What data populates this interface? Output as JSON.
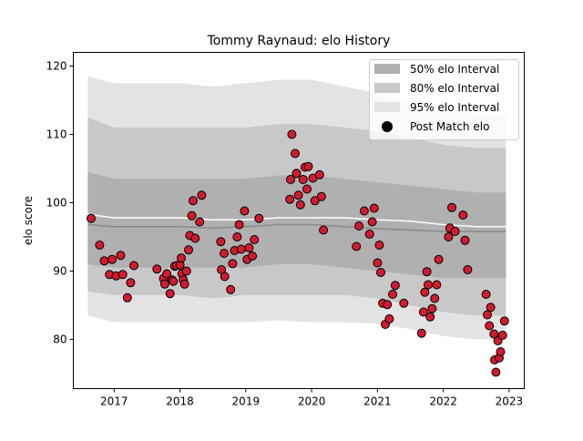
{
  "chart_data": {
    "type": "scatter",
    "title": "Tommy Raynaud: elo History",
    "xlabel": "",
    "ylabel": "elo score",
    "xlim": [
      2016.38,
      2023.23
    ],
    "ylim": [
      72.8,
      122.0
    ],
    "x_ticks": [
      2017,
      2018,
      2019,
      2020,
      2021,
      2022,
      2023
    ],
    "x_tick_labels": [
      "2017",
      "2018",
      "2019",
      "2020",
      "2021",
      "2022",
      "2023"
    ],
    "y_ticks": [
      80,
      90,
      100,
      110,
      120
    ],
    "y_tick_labels": [
      "80",
      "90",
      "100",
      "110",
      "120"
    ],
    "grid": false,
    "legend_position": "upper right",
    "colors": {
      "band50": "#b0b0b0",
      "band80": "#c8c8c8",
      "band95": "#e3e3e3",
      "mean_line": "#8a8a8a",
      "median_line": "#ffffff",
      "points": "#d01c2e",
      "point_edge": "#000000"
    },
    "legend": [
      {
        "label": "50% elo Interval",
        "kind": "band",
        "color": "#b0b0b0"
      },
      {
        "label": "80% elo Interval",
        "kind": "band",
        "color": "#c8c8c8"
      },
      {
        "label": "95% elo Interval",
        "kind": "band",
        "color": "#e3e3e3"
      },
      {
        "label": "Post Match elo",
        "kind": "marker",
        "color": "#000000"
      }
    ],
    "band_x": [
      2016.6,
      2017.0,
      2017.5,
      2018.0,
      2018.5,
      2019.0,
      2019.5,
      2020.0,
      2020.5,
      2021.0,
      2021.5,
      2022.0,
      2022.5,
      2022.95
    ],
    "band95": {
      "lower": [
        83.5,
        82.5,
        82.5,
        82.5,
        82.5,
        82.5,
        82.8,
        82.5,
        82.5,
        82.3,
        81.5,
        80.5,
        80.0,
        80.0
      ],
      "upper": [
        118.5,
        117.5,
        117.5,
        117.5,
        117.0,
        117.5,
        118.0,
        118.0,
        117.0,
        116.0,
        114.5,
        113.5,
        113.0,
        113.0
      ]
    },
    "band80": {
      "lower": [
        87.0,
        86.5,
        86.5,
        86.5,
        86.0,
        86.5,
        86.5,
        86.5,
        86.5,
        86.0,
        85.0,
        84.0,
        83.5,
        83.5
      ],
      "upper": [
        112.5,
        111.0,
        111.0,
        111.0,
        111.0,
        111.0,
        111.5,
        111.5,
        111.0,
        110.5,
        109.5,
        108.5,
        108.0,
        108.0
      ]
    },
    "band50": {
      "lower": [
        91.0,
        90.5,
        90.5,
        90.5,
        90.5,
        90.5,
        91.0,
        91.0,
        90.5,
        90.0,
        89.5,
        89.0,
        89.0,
        89.0
      ],
      "upper": [
        104.5,
        103.5,
        103.5,
        103.5,
        103.5,
        103.5,
        104.0,
        104.0,
        103.5,
        103.0,
        102.5,
        102.0,
        101.5,
        101.5
      ]
    },
    "mean_line": [
      96.8,
      96.5,
      96.5,
      96.5,
      96.3,
      96.5,
      96.8,
      96.8,
      96.5,
      96.2,
      96.0,
      95.8,
      95.8,
      95.8
    ],
    "median_line": [
      98.3,
      97.8,
      97.8,
      97.8,
      97.5,
      97.5,
      97.8,
      97.8,
      97.8,
      97.5,
      97.3,
      96.8,
      96.5,
      96.5
    ],
    "series": [
      {
        "name": "Post Match elo",
        "x": [
          2016.65,
          2016.78,
          2016.85,
          2016.93,
          2016.97,
          2017.03,
          2017.1,
          2017.13,
          2017.2,
          2017.25,
          2017.3,
          2017.65,
          2017.75,
          2017.77,
          2017.8,
          2017.85,
          2017.88,
          2017.9,
          2017.92,
          2017.95,
          2018.0,
          2018.02,
          2018.03,
          2018.05,
          2018.07,
          2018.1,
          2018.13,
          2018.15,
          2018.18,
          2018.2,
          2018.23,
          2018.3,
          2018.33,
          2018.62,
          2018.63,
          2018.67,
          2018.68,
          2018.77,
          2018.8,
          2018.83,
          2018.87,
          2018.9,
          2018.93,
          2018.98,
          2019.02,
          2019.05,
          2019.1,
          2019.13,
          2019.2,
          2019.67,
          2019.68,
          2019.7,
          2019.75,
          2019.77,
          2019.8,
          2019.83,
          2019.87,
          2019.9,
          2019.93,
          2019.95,
          2020.02,
          2020.05,
          2020.12,
          2020.15,
          2020.18,
          2020.68,
          2020.72,
          2020.8,
          2020.88,
          2020.92,
          2020.95,
          2021.0,
          2021.03,
          2021.05,
          2021.08,
          2021.12,
          2021.15,
          2021.18,
          2021.23,
          2021.27,
          2021.4,
          2021.67,
          2021.7,
          2021.72,
          2021.75,
          2021.77,
          2021.8,
          2021.83,
          2021.87,
          2021.9,
          2021.93,
          2022.08,
          2022.1,
          2022.13,
          2022.18,
          2022.3,
          2022.33,
          2022.37,
          2022.65,
          2022.67,
          2022.7,
          2022.72,
          2022.77,
          2022.78,
          2022.8,
          2022.83,
          2022.85,
          2022.87,
          2022.9,
          2022.93
        ],
        "y": [
          97.7,
          93.8,
          91.5,
          89.5,
          91.7,
          89.3,
          92.3,
          89.5,
          86.1,
          88.3,
          90.8,
          90.3,
          88.9,
          88.1,
          89.6,
          86.7,
          88.7,
          88.5,
          90.7,
          90.8,
          90.9,
          91.9,
          89.6,
          88.7,
          88.1,
          90.0,
          93.1,
          95.2,
          98.1,
          100.3,
          94.8,
          97.2,
          101.1,
          94.3,
          90.2,
          92.6,
          89.2,
          87.3,
          91.1,
          93.0,
          95.0,
          96.8,
          93.2,
          98.8,
          91.7,
          93.4,
          92.2,
          94.6,
          97.7,
          100.5,
          103.4,
          110.0,
          107.2,
          104.3,
          101.1,
          99.7,
          103.4,
          105.2,
          102.0,
          105.3,
          103.6,
          100.3,
          104.1,
          100.9,
          96.0,
          93.6,
          96.6,
          98.8,
          95.4,
          97.2,
          99.2,
          91.2,
          93.8,
          89.8,
          85.3,
          82.2,
          85.1,
          83.0,
          86.6,
          87.9,
          85.3,
          80.9,
          84.0,
          86.9,
          89.9,
          88.0,
          83.3,
          84.5,
          86.0,
          88.0,
          91.7,
          95.0,
          96.3,
          99.3,
          95.8,
          98.2,
          94.5,
          90.2,
          86.6,
          83.6,
          82.0,
          84.7,
          80.8,
          77.0,
          75.2,
          79.8,
          77.3,
          78.2,
          80.6,
          82.7
        ]
      }
    ]
  }
}
